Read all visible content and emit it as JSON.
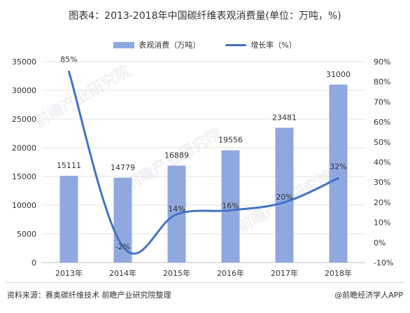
{
  "title": "图表4：2013-2018年中国碳纤维表观消费量(单位：万吨，%)",
  "legend": {
    "bar_label": "表观消费（万吨）",
    "line_label": "增长率（%）"
  },
  "footer": {
    "source": "资料来源：赛奥碳纤维技术 前瞻产业研究院整理",
    "brand": "@前瞻经济学人APP"
  },
  "watermark": "前瞻产业研究院",
  "colors": {
    "bar": "#8fa9e0",
    "line": "#4472c4",
    "grid": "#e3e3e3"
  },
  "chart_data": {
    "type": "bar",
    "categories": [
      "2013年",
      "2014年",
      "2015年",
      "2016年",
      "2017年",
      "2018年"
    ],
    "series": [
      {
        "name": "表观消费（万吨）",
        "type": "bar",
        "axis": "left",
        "values": [
          15111,
          14779,
          16889,
          19556,
          23481,
          31000
        ],
        "labels": [
          "15111",
          "14779",
          "16889",
          "19556",
          "23481",
          "31000"
        ]
      },
      {
        "name": "增长率（%）",
        "type": "line",
        "axis": "right",
        "values": [
          85,
          -2,
          14,
          16,
          20,
          32
        ],
        "labels": [
          "85%",
          "-2%",
          "14%",
          "16%",
          "20%",
          "32%"
        ]
      }
    ],
    "y_left": {
      "min": 0,
      "max": 35000,
      "ticks": [
        0,
        5000,
        10000,
        15000,
        20000,
        25000,
        30000,
        35000
      ]
    },
    "y_right": {
      "min": -10,
      "max": 90,
      "ticks": [
        "-10%",
        "0%",
        "10%",
        "20%",
        "30%",
        "40%",
        "50%",
        "60%",
        "70%",
        "80%",
        "90%"
      ]
    },
    "grid": true,
    "legend_position": "top"
  }
}
